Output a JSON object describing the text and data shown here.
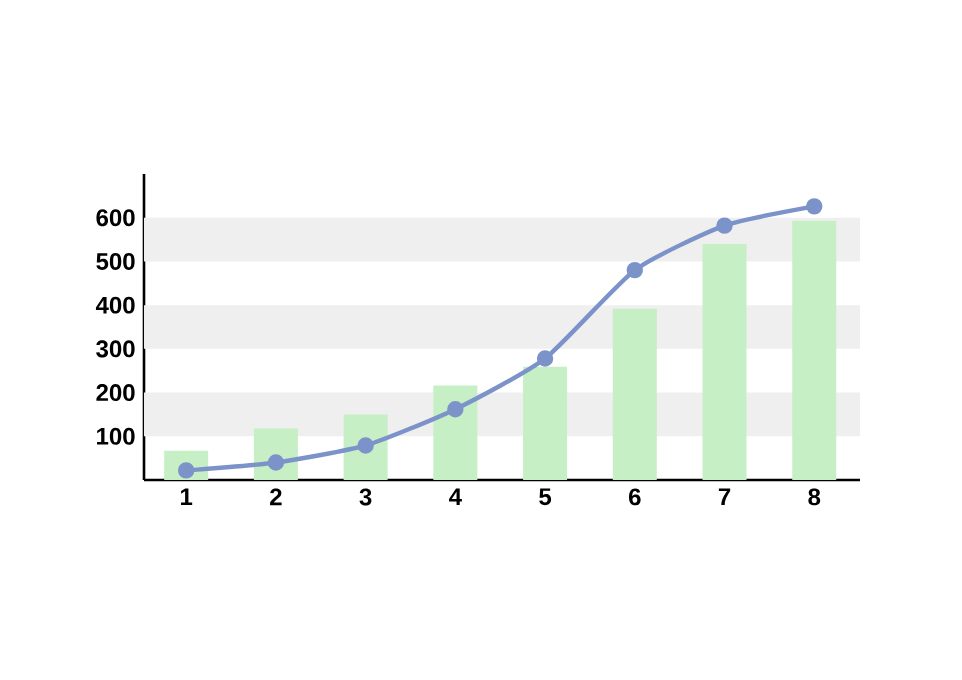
{
  "chart_data": {
    "type": "bar",
    "categories": [
      "1",
      "2",
      "3",
      "4",
      "5",
      "6",
      "7",
      "8"
    ],
    "series": [
      {
        "color": "#c6efc6",
        "values": [
          67,
          118,
          150,
          216,
          259,
          392,
          540,
          593
        ]
      },
      {
        "type": "line",
        "color": "#7b93c9",
        "marker": "circle",
        "values": [
          22,
          40,
          79,
          162,
          278,
          480,
          582,
          626
        ]
      }
    ],
    "ylim": [
      0,
      700
    ],
    "yticks": [
      100,
      200,
      300,
      400,
      500,
      600
    ],
    "bands": [
      {
        "axis": "y",
        "from": 100,
        "to": 200,
        "color": "#efefef"
      },
      {
        "axis": "y",
        "from": 300,
        "to": 400,
        "color": "#efefef"
      },
      {
        "axis": "y",
        "from": 500,
        "to": 600,
        "color": "#efefef"
      }
    ]
  }
}
